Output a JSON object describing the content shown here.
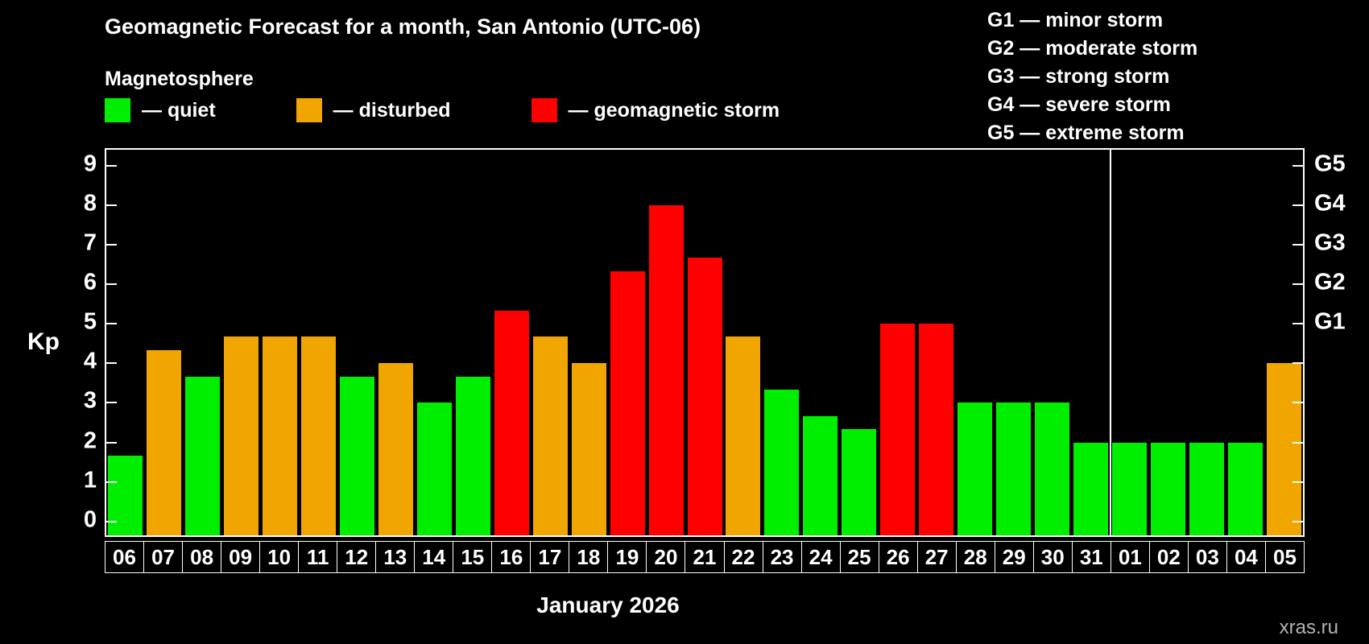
{
  "header": {
    "title": "Geomagnetic Forecast for a month, San Antonio (UTC-06)",
    "subtitle": "Magnetosphere"
  },
  "legend": {
    "items": [
      {
        "status": "quiet",
        "label": "— quiet",
        "color": "#00ee00"
      },
      {
        "status": "disturbed",
        "label": "— disturbed",
        "color": "#f0a500"
      },
      {
        "status": "storm",
        "label": "— geomagnetic storm",
        "color": "#ff0000"
      }
    ]
  },
  "g_scale_legend": {
    "items": [
      "G1 — minor storm",
      "G2 — moderate storm",
      "G3 — strong storm",
      "G4 — severe storm",
      "G5 — extreme storm"
    ]
  },
  "watermark": "xras.ru",
  "chart_data": {
    "type": "bar",
    "title": "Geomagnetic Forecast for a month, San Antonio (UTC-06)",
    "subtitle": "Magnetosphere",
    "xlabel": "January 2026",
    "ylabel": "Kp",
    "ylim": [
      0,
      9
    ],
    "yticks": [
      0,
      1,
      2,
      3,
      4,
      5,
      6,
      7,
      8,
      9
    ],
    "right_axis_ticks": [
      {
        "label": "G1",
        "value": 5
      },
      {
        "label": "G2",
        "value": 6
      },
      {
        "label": "G3",
        "value": 7
      },
      {
        "label": "G4",
        "value": 8
      },
      {
        "label": "G5",
        "value": 9
      }
    ],
    "categories": [
      "06",
      "07",
      "08",
      "09",
      "10",
      "11",
      "12",
      "13",
      "14",
      "15",
      "16",
      "17",
      "18",
      "19",
      "20",
      "21",
      "22",
      "23",
      "24",
      "25",
      "26",
      "27",
      "28",
      "29",
      "30",
      "31",
      "01",
      "02",
      "03",
      "04",
      "05"
    ],
    "values": [
      1.67,
      4.33,
      3.67,
      4.67,
      4.67,
      4.67,
      3.67,
      4.0,
      3.0,
      3.67,
      5.33,
      4.67,
      4.0,
      6.33,
      8.0,
      6.67,
      4.67,
      3.33,
      2.67,
      2.33,
      5.0,
      5.0,
      3.0,
      3.0,
      3.0,
      2.0,
      2.0,
      2.0,
      2.0,
      2.0,
      4.0
    ],
    "statuses": [
      "quiet",
      "disturbed",
      "quiet",
      "disturbed",
      "disturbed",
      "disturbed",
      "quiet",
      "disturbed",
      "quiet",
      "quiet",
      "storm",
      "disturbed",
      "disturbed",
      "storm",
      "storm",
      "storm",
      "disturbed",
      "quiet",
      "quiet",
      "quiet",
      "storm",
      "storm",
      "quiet",
      "quiet",
      "quiet",
      "quiet",
      "quiet",
      "quiet",
      "quiet",
      "quiet",
      "disturbed"
    ],
    "colors": {
      "quiet": "#00ee00",
      "disturbed": "#f0a500",
      "storm": "#ff0000"
    },
    "month_separator_after_index": 25,
    "grid": false,
    "legend_position": "top"
  }
}
